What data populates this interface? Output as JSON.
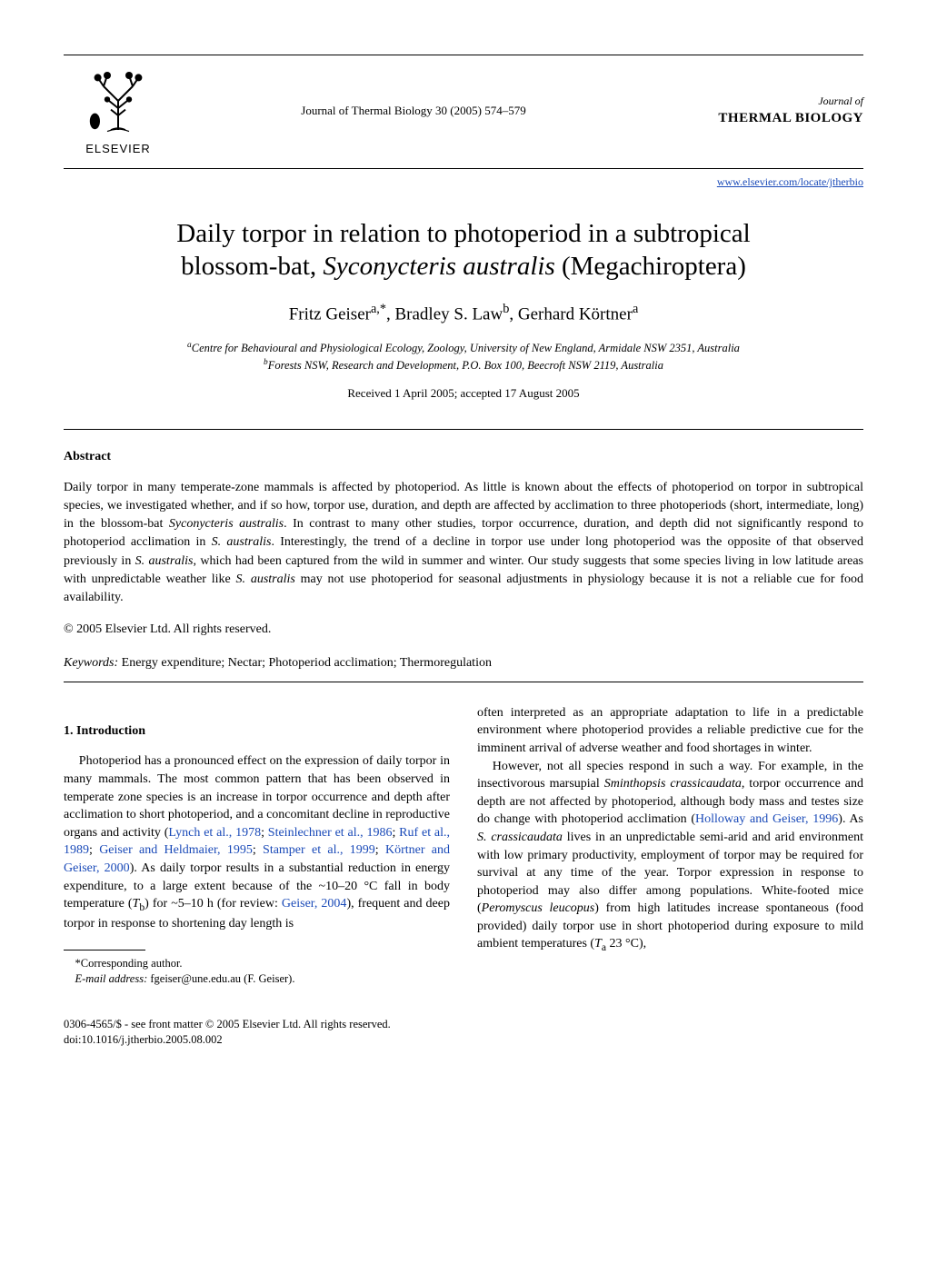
{
  "header": {
    "publisher_label": "ELSEVIER",
    "journal_citation": "Journal of Thermal Biology 30 (2005) 574–579",
    "journal_of": "Journal of",
    "journal_name": "THERMAL BIOLOGY",
    "site_url": "www.elsevier.com/locate/jtherbio"
  },
  "title_line1": "Daily torpor in relation to photoperiod in a subtropical",
  "title_line2_pre": "blossom-bat, ",
  "title_line2_species": "Syconycteris australis",
  "title_line2_post": " (Megachiroptera)",
  "authors_html": "Fritz Geiser<sup>a,*</sup>, Bradley S. Law<sup>b</sup>, Gerhard Körtner<sup>a</sup>",
  "affiliations": {
    "a": "Centre for Behavioural and Physiological Ecology, Zoology, University of New England, Armidale NSW 2351, Australia",
    "b": "Forests NSW, Research and Development, P.O. Box 100, Beecroft NSW 2119, Australia"
  },
  "dates": "Received 1 April 2005; accepted 17 August 2005",
  "abstract": {
    "heading": "Abstract",
    "body": "Daily torpor in many temperate-zone mammals is affected by photoperiod. As little is known about the effects of photoperiod on torpor in subtropical species, we investigated whether, and if so how, torpor use, duration, and depth are affected by acclimation to three photoperiods (short, intermediate, long) in the blossom-bat Syconycteris australis. In contrast to many other studies, torpor occurrence, duration, and depth did not significantly respond to photoperiod acclimation in S. australis. Interestingly, the trend of a decline in torpor use under long photoperiod was the opposite of that observed previously in S. australis, which had been captured from the wild in summer and winter. Our study suggests that some species living in low latitude areas with unpredictable weather like S. australis may not use photoperiod for seasonal adjustments in physiology because it is not a reliable cue for food availability.",
    "copyright": "© 2005 Elsevier Ltd. All rights reserved."
  },
  "keywords": {
    "label": "Keywords:",
    "text": " Energy expenditure; Nectar; Photoperiod acclimation; Thermoregulation"
  },
  "intro": {
    "heading": "1.  Introduction",
    "left_para": "Photoperiod has a pronounced effect on the expression of daily torpor in many mammals. The most common pattern that has been observed in temperate zone species is an increase in torpor occurrence and depth after acclimation to short photoperiod, and a concomitant decline in reproductive organs and activity (Lynch et al., 1978; Steinlechner et al., 1986; Ruf et al., 1989; Geiser and Heldmaier, 1995; Stamper et al., 1999; Körtner and Geiser, 2000). As daily torpor results in a substantial reduction in energy expenditure, to a large extent because of the ~10–20 °C fall in body temperature (T_b) for ~5–10 h (for review: Geiser, 2004), frequent and deep torpor in response to shortening day length is",
    "right_para1": "often interpreted as an appropriate adaptation to life in a predictable environment where photoperiod provides a reliable predictive cue for the imminent arrival of adverse weather and food shortages in winter.",
    "right_para2": "However, not all species respond in such a way. For example, in the insectivorous marsupial Sminthopsis crassicaudata, torpor occurrence and depth are not affected by photoperiod, although body mass and testes size do change with photoperiod acclimation (Holloway and Geiser, 1996). As S. crassicaudata lives in an unpredictable semi-arid and arid environment with low primary productivity, employment of torpor may be required for survival at any time of the year. Torpor expression in response to photoperiod may also differ among populations. White-footed mice (Peromyscus leucopus) from high latitudes increase spontaneous (food provided) daily torpor use in short photoperiod during exposure to mild ambient temperatures (T_a 23 °C),"
  },
  "footnote": {
    "corr": "*Corresponding author.",
    "email_label": "E-mail address:",
    "email": " fgeiser@une.edu.au (F. Geiser)."
  },
  "footer": {
    "line1": "0306-4565/$ - see front matter © 2005 Elsevier Ltd. All rights reserved.",
    "line2": "doi:10.1016/j.jtherbio.2005.08.002"
  },
  "colors": {
    "text": "#000000",
    "background": "#ffffff",
    "link": "#1a4ab8",
    "logo_orange": "#e97a2a"
  }
}
